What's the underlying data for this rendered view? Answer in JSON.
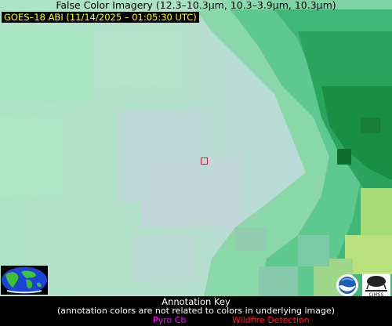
{
  "header": {
    "title": "False Color Imagery (12.3–10.3µm, 10.3–3.9µm, 10.3µm)",
    "satellite_label": "GOES–18 ABI (11/14/2025 – 01:05:30 UTC)"
  },
  "colors": {
    "title_text": "#000000",
    "label_text": "#ffff00",
    "label_background": "#000000",
    "key_background": "#000000",
    "pyro_cb": "#ff00ff",
    "wildfire_detection": "#ff1a1a",
    "marker": "#e0142a"
  },
  "annotation_key": {
    "title": "Annotation Key",
    "note": "(annotation colors are not related to colors in underlying image)",
    "items": {
      "pyro_cb": "Pyro Cb",
      "wildfire": "Wildfire Detection"
    }
  },
  "logos": {
    "globe": "globe-logo",
    "noaa": "noaa-logo",
    "cimss": "cimss-logo"
  }
}
